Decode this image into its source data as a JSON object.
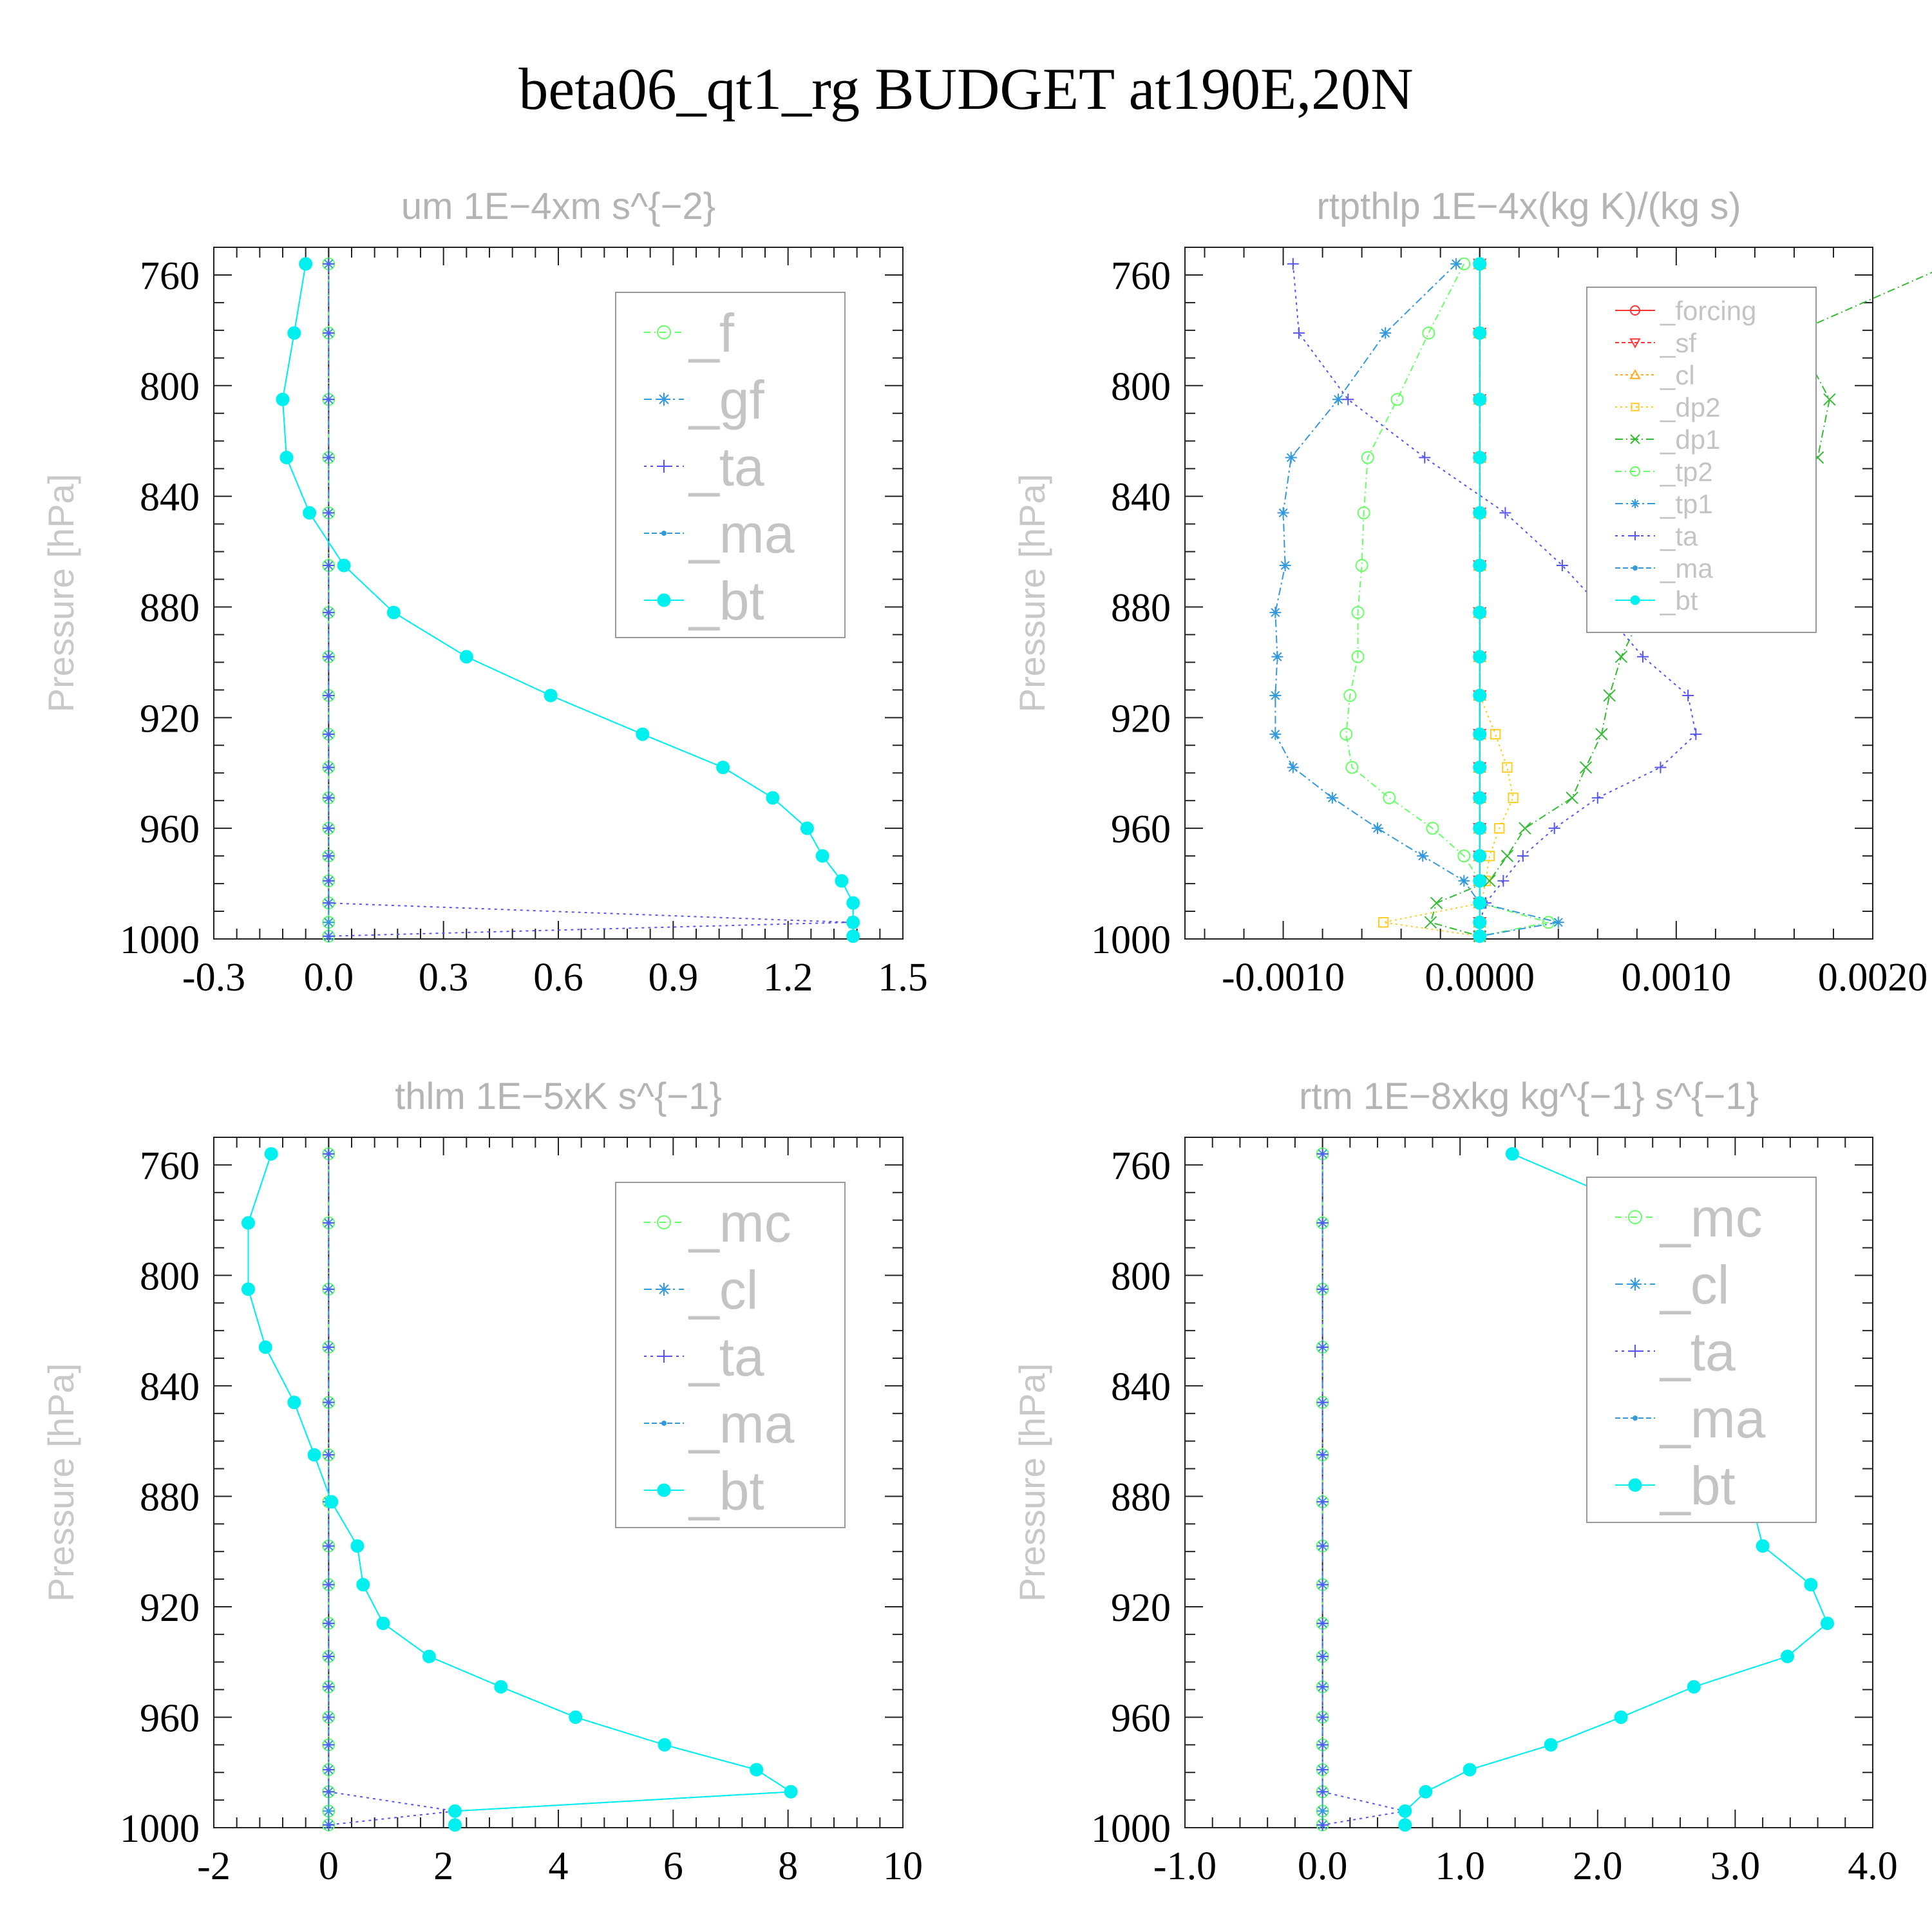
{
  "title": "beta06_qt1_rg  BUDGET at190E,20N",
  "colors": {
    "green": "#66ff66",
    "blue": "#3399dd",
    "purple": "#5555ee",
    "cyan": "#00f0f0",
    "red": "#ff3333",
    "orange": "#ffaa22",
    "yellow": "#ffcc22",
    "darkgreen": "#33bb33"
  },
  "chart_data": [
    {
      "type": "line",
      "title": "um  1E−4xm s^{−2}",
      "ylabel": "Pressure [hPa]",
      "ylim": [
        1000,
        750
      ],
      "yticks": [
        760,
        800,
        840,
        880,
        920,
        960,
        1000
      ],
      "xlim": [
        -0.3,
        1.5
      ],
      "xticks": [
        -0.3,
        0.0,
        0.3,
        0.6,
        0.9,
        1.2,
        1.5
      ],
      "xtick_labels": [
        "-0.3",
        "0.0",
        "0.3",
        "0.6",
        "0.9",
        "1.2",
        "1.5"
      ],
      "legend_position": "top-right",
      "y": [
        756,
        781,
        805,
        826,
        846,
        865,
        882,
        898,
        912,
        926,
        938,
        949,
        960,
        970,
        979,
        987,
        994,
        999
      ],
      "series": [
        {
          "name": "_f",
          "color": "#66ff66",
          "marker": "circle",
          "dash": "10,6,2,6",
          "values": [
            0,
            0,
            0,
            0,
            0,
            0,
            0,
            0,
            0,
            0,
            0,
            0,
            0,
            0,
            0,
            0,
            0,
            0
          ]
        },
        {
          "name": "_gf",
          "color": "#3399dd",
          "marker": "star",
          "dash": "12,6,3,6",
          "values": [
            0,
            0,
            0,
            0,
            0,
            0,
            0,
            0,
            0,
            0,
            0,
            0,
            0,
            0,
            0,
            0,
            0,
            0
          ]
        },
        {
          "name": "_ta",
          "color": "#5555ee",
          "marker": "plus",
          "dash": "4,6",
          "values": [
            0,
            0,
            0,
            0,
            0,
            0,
            0,
            0,
            0,
            0,
            0,
            0,
            0,
            0,
            0,
            0,
            1.36,
            0
          ]
        },
        {
          "name": "_ma",
          "color": "#3399dd",
          "marker": "dot",
          "dash": "8,4",
          "values": [
            -0.06,
            -0.09,
            -0.12,
            -0.11,
            -0.05,
            0.04,
            0.17,
            0.36,
            0.58,
            0.82,
            1.03,
            1.16,
            1.25,
            1.29,
            1.34,
            1.37,
            1.37,
            1.37
          ]
        },
        {
          "name": "_bt",
          "color": "#00f0f0",
          "marker": "bigdot",
          "dash": "",
          "values": [
            -0.06,
            -0.09,
            -0.12,
            -0.11,
            -0.05,
            0.04,
            0.17,
            0.36,
            0.58,
            0.82,
            1.03,
            1.16,
            1.25,
            1.29,
            1.34,
            1.37,
            1.37,
            1.37
          ]
        }
      ]
    },
    {
      "type": "line",
      "title": "rtpthlp  1E−4x(kg K)/(kg s)",
      "ylabel": "Pressure [hPa]",
      "ylim": [
        1000,
        750
      ],
      "yticks": [
        760,
        800,
        840,
        880,
        920,
        960,
        1000
      ],
      "xlim": [
        -0.0015,
        0.002
      ],
      "xticks": [
        -0.001,
        0.0,
        0.001,
        0.002
      ],
      "xtick_labels": [
        "-0.0010",
        "0.0000",
        "0.0010",
        "0.0020"
      ],
      "legend_position": "top-right",
      "y": [
        756,
        781,
        805,
        826,
        846,
        865,
        882,
        898,
        912,
        926,
        938,
        949,
        960,
        970,
        979,
        987,
        994,
        999
      ],
      "series": [
        {
          "name": "_forcing",
          "color": "#ff3333",
          "marker": "circle",
          "dash": "",
          "values": [
            0,
            0,
            0,
            0,
            0,
            0,
            0,
            0,
            0,
            0,
            0,
            0,
            0,
            0,
            0,
            0,
            0,
            0
          ]
        },
        {
          "name": "_sf",
          "color": "#ff3333",
          "marker": "tridown",
          "dash": "6,4",
          "values": [
            0,
            0,
            0,
            0,
            0,
            0,
            0,
            0,
            0,
            0,
            0,
            0,
            0,
            0,
            0,
            0,
            0,
            0
          ]
        },
        {
          "name": "_cl",
          "color": "#ffaa22",
          "marker": "triup",
          "dash": "4,4",
          "values": [
            0,
            0,
            0,
            0,
            0,
            0,
            0,
            0,
            0,
            0,
            0,
            0,
            0,
            0,
            0,
            0,
            0,
            0
          ]
        },
        {
          "name": "_dp2",
          "color": "#ffcc22",
          "marker": "square",
          "dash": "3,5",
          "values": [
            0,
            0,
            0,
            0,
            0,
            0,
            0,
            0,
            0,
            8e-05,
            0.00014,
            0.00017,
            0.0001,
            5e-05,
            3e-05,
            1e-05,
            -0.00049,
            0
          ]
        },
        {
          "name": "_dp1",
          "color": "#33bb33",
          "marker": "cross",
          "dash": "12,5,2,5",
          "values": [
            0.0024,
            0.0016,
            0.00178,
            0.00172,
            0.0015,
            0.0011,
            0.00083,
            0.00072,
            0.00066,
            0.00062,
            0.00054,
            0.00047,
            0.00023,
            0.00014,
            5e-05,
            -0.00022,
            -0.00025,
            0
          ]
        },
        {
          "name": "_tp2",
          "color": "#66ff66",
          "marker": "circle",
          "dash": "10,5,2,5",
          "values": [
            -8e-05,
            -0.00026,
            -0.00042,
            -0.00057,
            -0.00059,
            -0.0006,
            -0.00062,
            -0.00062,
            -0.00066,
            -0.00068,
            -0.00065,
            -0.00046,
            -0.00024,
            -8e-05,
            0,
            0,
            0.00035,
            0
          ]
        },
        {
          "name": "_tp1",
          "color": "#3399dd",
          "marker": "star",
          "dash": "12,5,3,5",
          "values": [
            -0.00012,
            -0.00048,
            -0.00072,
            -0.00096,
            -0.001,
            -0.00099,
            -0.00104,
            -0.00103,
            -0.00104,
            -0.00104,
            -0.00095,
            -0.00075,
            -0.00052,
            -0.00029,
            -8e-05,
            0,
            0.0004,
            0
          ]
        },
        {
          "name": "_ta",
          "color": "#5555ee",
          "marker": "plus",
          "dash": "4,6",
          "values": [
            -0.00095,
            -0.00092,
            -0.00067,
            -0.00028,
            0.00013,
            0.00042,
            0.00064,
            0.00083,
            0.00106,
            0.0011,
            0.00092,
            0.0006,
            0.00038,
            0.00022,
            0.00012,
            3e-05,
            0,
            0
          ]
        },
        {
          "name": "_ma",
          "color": "#3399dd",
          "marker": "dot",
          "dash": "8,4",
          "values": [
            0,
            0,
            0,
            0,
            0,
            0,
            0,
            0,
            0,
            0,
            0,
            0,
            0,
            0,
            0,
            0,
            0,
            0
          ]
        },
        {
          "name": "_bt",
          "color": "#00f0f0",
          "marker": "bigdot",
          "dash": "",
          "values": [
            0,
            0,
            0,
            0,
            0,
            0,
            0,
            0,
            0,
            0,
            0,
            0,
            0,
            0,
            0,
            0,
            0,
            0
          ]
        }
      ]
    },
    {
      "type": "line",
      "title": "thlm  1E−5xK s^{−1}",
      "ylabel": "Pressure [hPa]",
      "ylim": [
        1000,
        750
      ],
      "yticks": [
        760,
        800,
        840,
        880,
        920,
        960,
        1000
      ],
      "xlim": [
        -2,
        10
      ],
      "xticks": [
        -2,
        0,
        2,
        4,
        6,
        8,
        10
      ],
      "xtick_labels": [
        "-2",
        "0",
        "2",
        "4",
        "6",
        "8",
        "10"
      ],
      "legend_position": "top-right",
      "y": [
        756,
        781,
        805,
        826,
        846,
        865,
        882,
        898,
        912,
        926,
        938,
        949,
        960,
        970,
        979,
        987,
        994,
        999
      ],
      "series": [
        {
          "name": "_mc",
          "color": "#66ff66",
          "marker": "circle",
          "dash": "10,6,2,6",
          "values": [
            0,
            0,
            0,
            0,
            0,
            0,
            0,
            0,
            0,
            0,
            0,
            0,
            0,
            0,
            0,
            0,
            0,
            0
          ]
        },
        {
          "name": "_cl",
          "color": "#3399dd",
          "marker": "star",
          "dash": "12,6,3,6",
          "values": [
            0,
            0,
            0,
            0,
            0,
            0,
            0,
            0,
            0,
            0,
            0,
            0,
            0,
            0,
            0,
            0,
            0,
            0
          ]
        },
        {
          "name": "_ta",
          "color": "#5555ee",
          "marker": "plus",
          "dash": "4,6",
          "values": [
            0,
            0,
            0,
            0,
            0,
            0,
            0,
            0,
            0,
            0,
            0,
            0,
            0,
            0,
            0,
            0,
            2.2,
            0
          ]
        },
        {
          "name": "_ma",
          "color": "#3399dd",
          "marker": "dot",
          "dash": "8,4",
          "values": [
            -1.0,
            -1.4,
            -1.4,
            -1.1,
            -0.6,
            -0.25,
            0.05,
            0.5,
            0.6,
            0.95,
            1.75,
            3.0,
            4.3,
            5.85,
            7.45,
            8.05,
            2.2,
            2.2
          ]
        },
        {
          "name": "_bt",
          "color": "#00f0f0",
          "marker": "bigdot",
          "dash": "",
          "values": [
            -1.0,
            -1.4,
            -1.4,
            -1.1,
            -0.6,
            -0.25,
            0.05,
            0.5,
            0.6,
            0.95,
            1.75,
            3.0,
            4.3,
            5.85,
            7.45,
            8.05,
            2.2,
            2.2
          ]
        }
      ]
    },
    {
      "type": "line",
      "title": "rtm  1E−8xkg kg^{−1} s^{−1}",
      "ylabel": "Pressure [hPa]",
      "ylim": [
        1000,
        750
      ],
      "yticks": [
        760,
        800,
        840,
        880,
        920,
        960,
        1000
      ],
      "xlim": [
        -1.0,
        4.0
      ],
      "xticks": [
        -1.0,
        0.0,
        1.0,
        2.0,
        3.0,
        4.0
      ],
      "xtick_labels": [
        "-1.0",
        "0.0",
        "1.0",
        "2.0",
        "3.0",
        "4.0"
      ],
      "legend_position": "top-right",
      "y": [
        756,
        781,
        805,
        826,
        846,
        865,
        882,
        898,
        912,
        926,
        938,
        949,
        960,
        970,
        979,
        987,
        994,
        999
      ],
      "series": [
        {
          "name": "_mc",
          "color": "#66ff66",
          "marker": "circle",
          "dash": "10,6,2,6",
          "values": [
            0,
            0,
            0,
            0,
            0,
            0,
            0,
            0,
            0,
            0,
            0,
            0,
            0,
            0,
            0,
            0,
            0,
            0
          ]
        },
        {
          "name": "_cl",
          "color": "#3399dd",
          "marker": "star",
          "dash": "12,6,3,6",
          "values": [
            0,
            0,
            0,
            0,
            0,
            0,
            0,
            0,
            0,
            0,
            0,
            0,
            0,
            0,
            0,
            0,
            0,
            0
          ]
        },
        {
          "name": "_ta",
          "color": "#5555ee",
          "marker": "plus",
          "dash": "4,6",
          "values": [
            0,
            0,
            0,
            0,
            0,
            0,
            0,
            0,
            0,
            0,
            0,
            0,
            0,
            0,
            0,
            0,
            0.6,
            0
          ]
        },
        {
          "name": "_ma",
          "color": "#3399dd",
          "marker": "dot",
          "dash": "8,4",
          "values": [
            1.38,
            2.55,
            3.2,
            3.27,
            2.93,
            2.95,
            3.12,
            3.2,
            3.55,
            3.67,
            3.38,
            2.7,
            2.17,
            1.66,
            1.07,
            0.75,
            0.6,
            0.6
          ]
        },
        {
          "name": "_bt",
          "color": "#00f0f0",
          "marker": "bigdot",
          "dash": "",
          "values": [
            1.38,
            2.55,
            3.2,
            3.27,
            2.93,
            2.95,
            3.12,
            3.2,
            3.55,
            3.67,
            3.38,
            2.7,
            2.17,
            1.66,
            1.07,
            0.75,
            0.6,
            0.6
          ]
        }
      ]
    }
  ]
}
